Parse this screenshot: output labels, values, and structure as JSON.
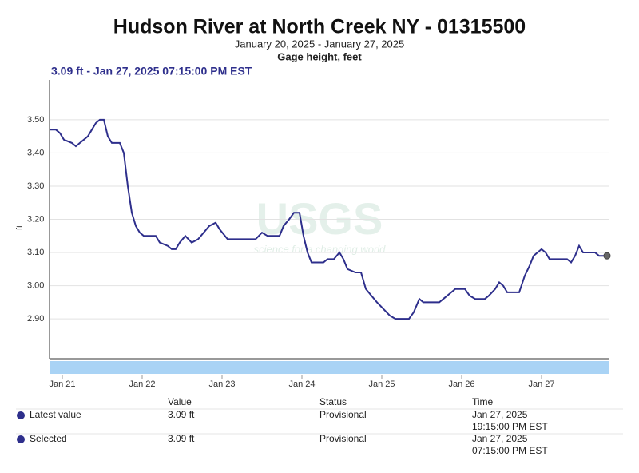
{
  "chart_data": {
    "type": "line",
    "title": "Hudson River at North Creek NY - 01315500",
    "subtitle": "January 20, 2025 - January 27, 2025",
    "parameter": "Gage height, feet",
    "selected_header": "3.09 ft - Jan 27, 2025 07:15:00 PM EST",
    "ylabel": "ft",
    "watermark": "USGS",
    "watermark_tagline": "science for a changing world",
    "color": "#2e2f8c",
    "grid": true,
    "x": [
      20.84,
      20.92,
      20.97,
      21.02,
      21.12,
      21.17,
      21.22,
      21.27,
      21.32,
      21.37,
      21.42,
      21.47,
      21.52,
      21.57,
      21.62,
      21.72,
      21.77,
      21.82,
      21.87,
      21.92,
      21.97,
      22.02,
      22.17,
      22.22,
      22.32,
      22.37,
      22.42,
      22.47,
      22.54,
      22.62,
      22.7,
      22.77,
      22.84,
      22.92,
      22.97,
      23.07,
      23.22,
      23.42,
      23.5,
      23.57,
      23.72,
      23.77,
      23.84,
      23.9,
      23.97,
      24.02,
      24.07,
      24.12,
      24.27,
      24.32,
      24.4,
      24.47,
      24.52,
      24.57,
      24.67,
      24.74,
      24.8,
      24.87,
      24.94,
      25.02,
      25.1,
      25.17,
      25.34,
      25.4,
      25.47,
      25.52,
      25.72,
      25.77,
      25.87,
      25.92,
      26.04,
      26.1,
      26.17,
      26.29,
      26.34,
      26.42,
      26.47,
      26.52,
      26.57,
      26.72,
      26.79,
      26.85,
      26.9,
      26.95,
      27.0,
      27.05,
      27.1,
      27.32,
      27.37,
      27.42,
      27.47,
      27.52,
      27.57,
      27.67,
      27.72,
      27.82
    ],
    "values": [
      3.47,
      3.47,
      3.46,
      3.44,
      3.43,
      3.42,
      3.43,
      3.44,
      3.45,
      3.47,
      3.49,
      3.5,
      3.5,
      3.45,
      3.43,
      3.43,
      3.4,
      3.3,
      3.22,
      3.18,
      3.16,
      3.15,
      3.15,
      3.13,
      3.12,
      3.11,
      3.11,
      3.13,
      3.15,
      3.13,
      3.14,
      3.16,
      3.18,
      3.19,
      3.17,
      3.14,
      3.14,
      3.14,
      3.16,
      3.15,
      3.15,
      3.18,
      3.2,
      3.22,
      3.22,
      3.15,
      3.1,
      3.07,
      3.07,
      3.08,
      3.08,
      3.1,
      3.08,
      3.05,
      3.04,
      3.04,
      2.99,
      2.97,
      2.95,
      2.93,
      2.91,
      2.9,
      2.9,
      2.92,
      2.96,
      2.95,
      2.95,
      2.96,
      2.98,
      2.99,
      2.99,
      2.97,
      2.96,
      2.96,
      2.97,
      2.99,
      3.01,
      3.0,
      2.98,
      2.98,
      3.03,
      3.06,
      3.09,
      3.1,
      3.11,
      3.1,
      3.08,
      3.08,
      3.07,
      3.09,
      3.12,
      3.1,
      3.1,
      3.1,
      3.09,
      3.09
    ],
    "xlim": [
      20.84,
      27.84
    ],
    "xticks": [
      {
        "value": 21,
        "label": "Jan 21"
      },
      {
        "value": 22,
        "label": "Jan 22"
      },
      {
        "value": 23,
        "label": "Jan 23"
      },
      {
        "value": 24,
        "label": "Jan 24"
      },
      {
        "value": 25,
        "label": "Jan 25"
      },
      {
        "value": 26,
        "label": "Jan 26"
      },
      {
        "value": 27,
        "label": "Jan 27"
      }
    ],
    "ylim": [
      2.78,
      3.62
    ],
    "yticks": [
      {
        "value": 2.9,
        "label": "2.90"
      },
      {
        "value": 3,
        "label": "3.00"
      },
      {
        "value": 3.1,
        "label": "3.10"
      },
      {
        "value": 3.2,
        "label": "3.20"
      },
      {
        "value": 3.3,
        "label": "3.30"
      },
      {
        "value": 3.4,
        "label": "3.40"
      },
      {
        "value": 3.5,
        "label": "3.50"
      }
    ]
  },
  "table": {
    "headers": [
      "Value",
      "Status",
      "Time"
    ],
    "rows": [
      {
        "label": "Latest value",
        "value": "3.09 ft",
        "status": "Provisional",
        "time": [
          "Jan 27, 2025",
          "19:15:00 PM EST"
        ]
      },
      {
        "label": "Selected",
        "value": "3.09 ft",
        "status": "Provisional",
        "time": [
          "Jan 27, 2025",
          "07:15:00 PM EST"
        ]
      }
    ]
  }
}
